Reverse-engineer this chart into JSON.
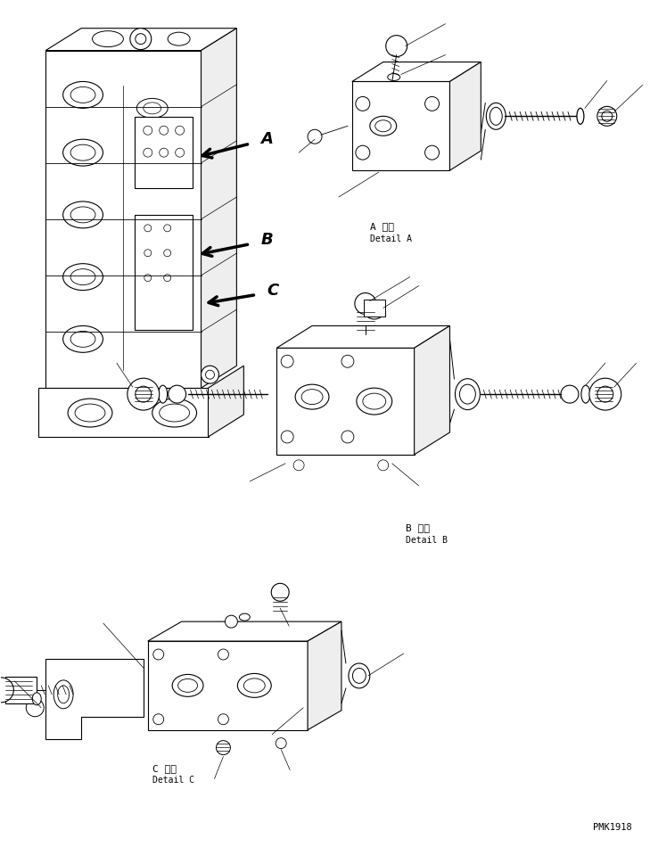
{
  "bg_color": "#ffffff",
  "line_color": "#000000",
  "figsize": [
    7.29,
    9.5
  ],
  "dpi": 100,
  "labels": {
    "A_japanese": "A 詳細",
    "A_english": "Detail A",
    "B_japanese": "B 詳細",
    "B_english": "Detail B",
    "C_japanese": "C 詳細",
    "C_english": "Detail C",
    "code": "PMK1918",
    "arrow_A": "A",
    "arrow_B": "B",
    "arrow_C": "C"
  }
}
